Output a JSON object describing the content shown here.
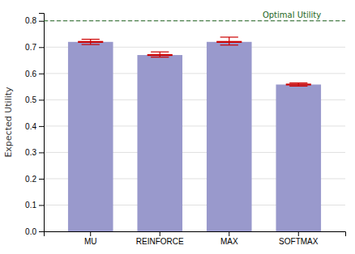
{
  "chart_data": {
    "type": "bar",
    "categories": [
      "MU",
      "REINFORCE",
      "MAX",
      "SOFTMAX"
    ],
    "values": [
      0.72,
      0.67,
      0.72,
      0.558
    ],
    "errors_low": [
      0.01,
      0.008,
      0.012,
      0.006
    ],
    "errors_high": [
      0.01,
      0.012,
      0.018,
      0.006
    ],
    "color": "#9999cc",
    "error_color": "#cc0000",
    "ylabel": "Expected Utility",
    "ylim": [
      0.0,
      0.83
    ],
    "yticks": [
      {
        "value": 0.0,
        "label": "0.0"
      },
      0.1,
      0.2,
      0.3,
      0.4,
      0.5,
      0.6,
      0.7,
      0.8
    ],
    "grid": true,
    "annotations": [
      {
        "text": "Optimal Utility",
        "y": 0.8,
        "color": "#226622",
        "line_style": "dashed"
      }
    ]
  }
}
